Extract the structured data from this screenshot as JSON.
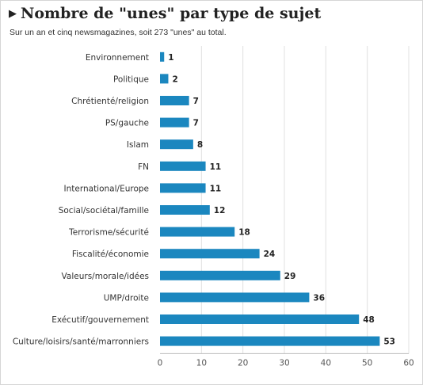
{
  "header": {
    "title": "Nombre de \"unes\" par type de sujet",
    "subtitle": "Sur un an et cinq newsmagazines, soit 273 \"unes\" au total."
  },
  "colors": {
    "bar": "#1b87bf",
    "grid": "#e0e0e0",
    "axis": "#bbbbbb"
  },
  "chart_data": {
    "type": "bar",
    "orientation": "horizontal",
    "title": "Nombre de \"unes\" par type de sujet",
    "subtitle": "Sur un an et cinq newsmagazines, soit 273 \"unes\" au total.",
    "categories": [
      "Environnement",
      "Politique",
      "Chrétienté/religion",
      "PS/gauche",
      "Islam",
      "FN",
      "International/Europe",
      "Social/sociétal/famille",
      "Terrorisme/sécurité",
      "Fiscalité/économie",
      "Valeurs/morale/idées",
      "UMP/droite",
      "Exécutif/gouvernement",
      "Culture/loisirs/santé/marronniers"
    ],
    "values": [
      1,
      2,
      7,
      7,
      8,
      11,
      11,
      12,
      18,
      24,
      29,
      36,
      48,
      53
    ],
    "xlim": [
      0,
      60
    ],
    "xticks": [
      0,
      10,
      20,
      30,
      40,
      50,
      60
    ],
    "grid": true,
    "data_labels": true,
    "legend": "none"
  }
}
